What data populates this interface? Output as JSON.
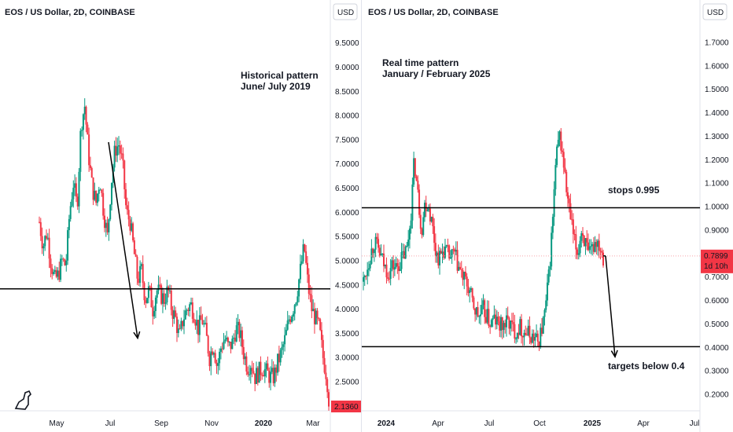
{
  "colors": {
    "up": "#089981",
    "down": "#f23645",
    "text": "#131722",
    "axis_border": "#e0e3eb",
    "price_line": "#f7a5ab",
    "line": "#000000"
  },
  "chart_data": [
    {
      "type": "candlestick",
      "title": "EOS / US Dollar, 2D, COINBASE",
      "currency": "USD",
      "ylim": [
        1.9,
        9.9
      ],
      "y_ticks": [
        "2.5000",
        "3.0000",
        "3.5000",
        "4.0000",
        "4.5000",
        "5.0000",
        "5.5000",
        "6.0000",
        "6.5000",
        "7.0000",
        "7.5000",
        "8.0000",
        "8.5000",
        "9.0000",
        "9.5000"
      ],
      "x_ticks": [
        "May",
        "Jul",
        "Sep",
        "Nov",
        "2020",
        "Mar"
      ],
      "x_ticks_bold": [
        "2020"
      ],
      "last_price_label": "2.1360",
      "annotation": [
        "Historical pattern",
        "June/ July 2019"
      ],
      "horizontal_levels": [
        4.42
      ],
      "price_series": [
        [
          0,
          5.8
        ],
        [
          4,
          5.3
        ],
        [
          8,
          5.6
        ],
        [
          12,
          5.0
        ],
        [
          16,
          4.6
        ],
        [
          20,
          4.7
        ],
        [
          24,
          5.0
        ],
        [
          28,
          4.9
        ],
        [
          32,
          6.0
        ],
        [
          36,
          6.6
        ],
        [
          40,
          6.1
        ],
        [
          44,
          7.8
        ],
        [
          48,
          8.2
        ],
        [
          52,
          7.2
        ],
        [
          56,
          6.5
        ],
        [
          60,
          6.2
        ],
        [
          64,
          6.7
        ],
        [
          68,
          6.0
        ],
        [
          72,
          5.5
        ],
        [
          76,
          6.6
        ],
        [
          80,
          7.3
        ],
        [
          84,
          7.4
        ],
        [
          88,
          7.0
        ],
        [
          92,
          6.0
        ],
        [
          96,
          5.8
        ],
        [
          100,
          5.2
        ],
        [
          104,
          4.6
        ],
        [
          108,
          4.8
        ],
        [
          112,
          4.2
        ],
        [
          116,
          4.4
        ],
        [
          120,
          4.0
        ],
        [
          124,
          4.4
        ],
        [
          128,
          4.3
        ],
        [
          132,
          4.2
        ],
        [
          136,
          4.4
        ],
        [
          140,
          4.0
        ],
        [
          144,
          3.8
        ],
        [
          148,
          3.4
        ],
        [
          152,
          3.8
        ],
        [
          156,
          4.0
        ],
        [
          160,
          4.1
        ],
        [
          164,
          3.9
        ],
        [
          168,
          3.6
        ],
        [
          172,
          3.8
        ],
        [
          176,
          3.5
        ],
        [
          180,
          3.0
        ],
        [
          184,
          3.3
        ],
        [
          188,
          2.8
        ],
        [
          192,
          3.2
        ],
        [
          196,
          3.4
        ],
        [
          200,
          3.2
        ],
        [
          204,
          3.3
        ],
        [
          208,
          3.6
        ],
        [
          212,
          3.5
        ],
        [
          216,
          3.1
        ],
        [
          220,
          2.8
        ],
        [
          224,
          2.9
        ],
        [
          228,
          2.6
        ],
        [
          232,
          2.7
        ],
        [
          236,
          2.8
        ],
        [
          240,
          2.7
        ],
        [
          244,
          2.6
        ],
        [
          248,
          2.6
        ],
        [
          252,
          2.9
        ],
        [
          256,
          3.1
        ],
        [
          260,
          3.4
        ],
        [
          264,
          3.8
        ],
        [
          268,
          4.0
        ],
        [
          272,
          4.3
        ],
        [
          276,
          4.8
        ],
        [
          280,
          5.3
        ],
        [
          284,
          4.5
        ],
        [
          288,
          4.0
        ],
        [
          292,
          3.8
        ],
        [
          296,
          3.6
        ],
        [
          300,
          3.0
        ],
        [
          304,
          2.6
        ],
        [
          306,
          2.14
        ]
      ],
      "arrows": [
        {
          "from": [
            0,
            7.45
          ],
          "to": [
            0,
            3.4
          ]
        }
      ]
    },
    {
      "type": "candlestick",
      "title": "EOS / US Dollar, 2D, COINBASE",
      "currency": "USD",
      "ylim": [
        0.13,
        1.78
      ],
      "y_ticks": [
        "0.2000",
        "0.3000",
        "0.4000",
        "0.5000",
        "0.6000",
        "0.7000",
        "0.8000",
        "0.9000",
        "1.0000",
        "1.1000",
        "1.2000",
        "1.3000",
        "1.4000",
        "1.5000",
        "1.6000",
        "1.7000"
      ],
      "x_ticks": [
        "2024",
        "Apr",
        "Jul",
        "Oct",
        "2025",
        "Apr",
        "Jul"
      ],
      "x_ticks_bold": [
        "2024",
        "2025"
      ],
      "last_price_label": "0.7899",
      "countdown_label": "1d 10h",
      "annotation": [
        "Real time pattern",
        "January / February 2025"
      ],
      "level_label_stops": "stops 0.995",
      "level_label_targets": "targets below 0.4",
      "horizontal_levels": [
        0.995,
        0.403
      ],
      "price_series": [
        [
          0,
          0.68
        ],
        [
          4,
          0.74
        ],
        [
          8,
          0.8
        ],
        [
          12,
          0.85
        ],
        [
          16,
          0.82
        ],
        [
          20,
          0.78
        ],
        [
          24,
          0.74
        ],
        [
          28,
          0.72
        ],
        [
          32,
          0.75
        ],
        [
          36,
          0.74
        ],
        [
          40,
          0.76
        ],
        [
          44,
          0.79
        ],
        [
          48,
          0.82
        ],
        [
          52,
          0.95
        ],
        [
          56,
          1.2
        ],
        [
          60,
          1.05
        ],
        [
          64,
          0.9
        ],
        [
          68,
          1.02
        ],
        [
          72,
          1.0
        ],
        [
          76,
          0.92
        ],
        [
          80,
          0.8
        ],
        [
          84,
          0.78
        ],
        [
          88,
          0.82
        ],
        [
          92,
          0.8
        ],
        [
          96,
          0.78
        ],
        [
          100,
          0.8
        ],
        [
          104,
          0.75
        ],
        [
          108,
          0.71
        ],
        [
          112,
          0.68
        ],
        [
          116,
          0.65
        ],
        [
          120,
          0.59
        ],
        [
          124,
          0.55
        ],
        [
          128,
          0.53
        ],
        [
          132,
          0.56
        ],
        [
          136,
          0.53
        ],
        [
          140,
          0.5
        ],
        [
          144,
          0.52
        ],
        [
          148,
          0.5
        ],
        [
          152,
          0.49
        ],
        [
          156,
          0.5
        ],
        [
          160,
          0.51
        ],
        [
          164,
          0.48
        ],
        [
          168,
          0.47
        ],
        [
          172,
          0.49
        ],
        [
          176,
          0.47
        ],
        [
          180,
          0.46
        ],
        [
          184,
          0.45
        ],
        [
          188,
          0.44
        ],
        [
          192,
          0.42
        ],
        [
          196,
          0.47
        ],
        [
          200,
          0.55
        ],
        [
          204,
          0.7
        ],
        [
          208,
          0.92
        ],
        [
          212,
          1.2
        ],
        [
          216,
          1.3
        ],
        [
          220,
          1.2
        ],
        [
          224,
          1.05
        ],
        [
          228,
          0.95
        ],
        [
          232,
          0.85
        ],
        [
          236,
          0.8
        ],
        [
          240,
          0.9
        ],
        [
          244,
          0.85
        ],
        [
          248,
          0.78
        ],
        [
          252,
          0.82
        ],
        [
          256,
          0.86
        ],
        [
          260,
          0.84
        ],
        [
          264,
          0.79
        ]
      ],
      "arrows": [
        {
          "from": [
            0,
            0.79
          ],
          "to": [
            0,
            0.36
          ]
        }
      ]
    }
  ]
}
